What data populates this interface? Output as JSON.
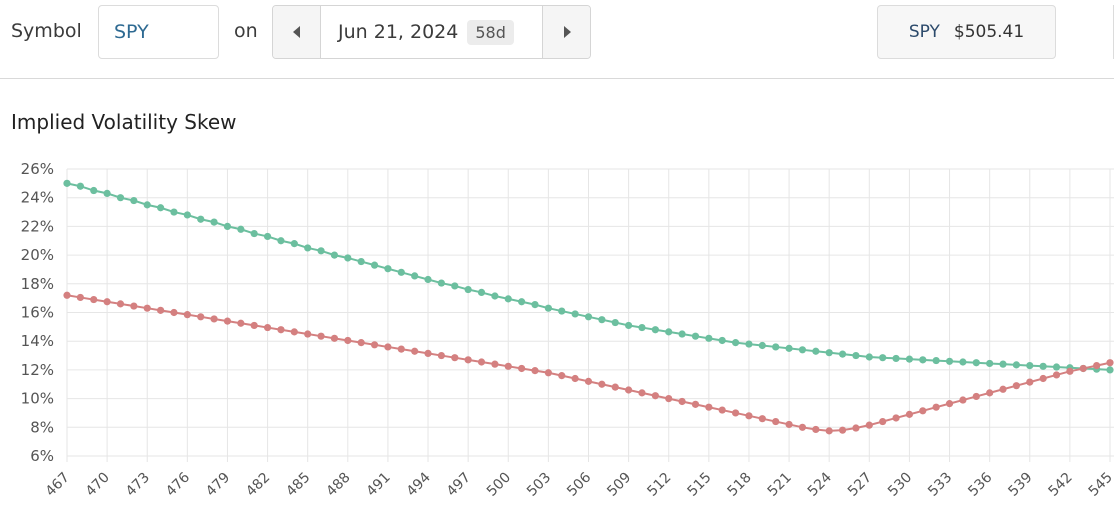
{
  "toolbar": {
    "symbol_label": "Symbol",
    "symbol_value": "SPY",
    "on_label": "on",
    "date": "Jun 21, 2024",
    "dte_badge": "58d",
    "price_symbol": "SPY",
    "price_value": "$505.41"
  },
  "icons": {
    "prev": "caret-left-icon",
    "next": "caret-right-icon"
  },
  "chart_data": {
    "type": "line",
    "title": "Implied Volatility Skew",
    "xlabel": "",
    "ylabel": "",
    "xlim": [
      467,
      545
    ],
    "ylim": [
      6,
      26
    ],
    "y_ticks": [
      6,
      8,
      10,
      12,
      14,
      16,
      18,
      20,
      22,
      24,
      26
    ],
    "y_tick_format": "percent",
    "x_ticks": [
      467,
      470,
      473,
      476,
      479,
      482,
      485,
      488,
      491,
      494,
      497,
      500,
      503,
      506,
      509,
      512,
      515,
      518,
      521,
      524,
      527,
      530,
      533,
      536,
      539,
      542,
      545
    ],
    "grid": true,
    "legend": "none",
    "series": [
      {
        "color": "#6cbf9f",
        "x": [
          467,
          468,
          469,
          470,
          471,
          472,
          473,
          474,
          475,
          476,
          477,
          478,
          479,
          480,
          481,
          482,
          483,
          484,
          485,
          486,
          487,
          488,
          489,
          490,
          491,
          492,
          493,
          494,
          495,
          496,
          497,
          498,
          499,
          500,
          501,
          502,
          503,
          504,
          505,
          506,
          507,
          508,
          509,
          510,
          511,
          512,
          513,
          514,
          515,
          516,
          517,
          518,
          519,
          520,
          521,
          522,
          523,
          524,
          525,
          526,
          527,
          528,
          529,
          530,
          531,
          532,
          533,
          534,
          535,
          536,
          537,
          538,
          539,
          540,
          541,
          542,
          543,
          544,
          545
        ],
        "values": [
          25.0,
          24.8,
          24.5,
          24.3,
          24.0,
          23.8,
          23.5,
          23.3,
          23.0,
          22.8,
          22.5,
          22.3,
          22.0,
          21.8,
          21.5,
          21.3,
          21.0,
          20.8,
          20.5,
          20.3,
          20.0,
          19.8,
          19.55,
          19.3,
          19.05,
          18.8,
          18.55,
          18.3,
          18.05,
          17.85,
          17.6,
          17.4,
          17.15,
          16.95,
          16.75,
          16.55,
          16.3,
          16.1,
          15.9,
          15.7,
          15.5,
          15.3,
          15.1,
          14.95,
          14.8,
          14.65,
          14.5,
          14.35,
          14.2,
          14.05,
          13.9,
          13.8,
          13.7,
          13.6,
          13.5,
          13.4,
          13.3,
          13.2,
          13.1,
          13.0,
          12.9,
          12.85,
          12.8,
          12.75,
          12.7,
          12.65,
          12.6,
          12.55,
          12.5,
          12.45,
          12.4,
          12.35,
          12.3,
          12.25,
          12.2,
          12.15,
          12.1,
          12.05,
          12.0
        ]
      },
      {
        "color": "#d48080",
        "x": [
          467,
          468,
          469,
          470,
          471,
          472,
          473,
          474,
          475,
          476,
          477,
          478,
          479,
          480,
          481,
          482,
          483,
          484,
          485,
          486,
          487,
          488,
          489,
          490,
          491,
          492,
          493,
          494,
          495,
          496,
          497,
          498,
          499,
          500,
          501,
          502,
          503,
          504,
          505,
          506,
          507,
          508,
          509,
          510,
          511,
          512,
          513,
          514,
          515,
          516,
          517,
          518,
          519,
          520,
          521,
          522,
          523,
          524,
          525,
          526,
          527,
          528,
          529,
          530,
          531,
          532,
          533,
          534,
          535,
          536,
          537,
          538,
          539,
          540,
          541,
          542,
          543,
          544,
          545
        ],
        "values": [
          17.2,
          17.05,
          16.9,
          16.75,
          16.6,
          16.45,
          16.3,
          16.15,
          16.0,
          15.85,
          15.7,
          15.55,
          15.4,
          15.25,
          15.1,
          14.95,
          14.8,
          14.65,
          14.5,
          14.35,
          14.2,
          14.05,
          13.9,
          13.75,
          13.6,
          13.45,
          13.3,
          13.15,
          13.0,
          12.85,
          12.7,
          12.55,
          12.4,
          12.25,
          12.1,
          11.95,
          11.8,
          11.6,
          11.4,
          11.2,
          11.0,
          10.8,
          10.6,
          10.4,
          10.2,
          10.0,
          9.8,
          9.6,
          9.4,
          9.2,
          9.0,
          8.8,
          8.6,
          8.4,
          8.2,
          8.0,
          7.85,
          7.75,
          7.8,
          7.95,
          8.15,
          8.4,
          8.65,
          8.9,
          9.15,
          9.4,
          9.65,
          9.9,
          10.15,
          10.4,
          10.65,
          10.9,
          11.15,
          11.4,
          11.65,
          11.9,
          12.1,
          12.3,
          12.5
        ]
      }
    ]
  }
}
